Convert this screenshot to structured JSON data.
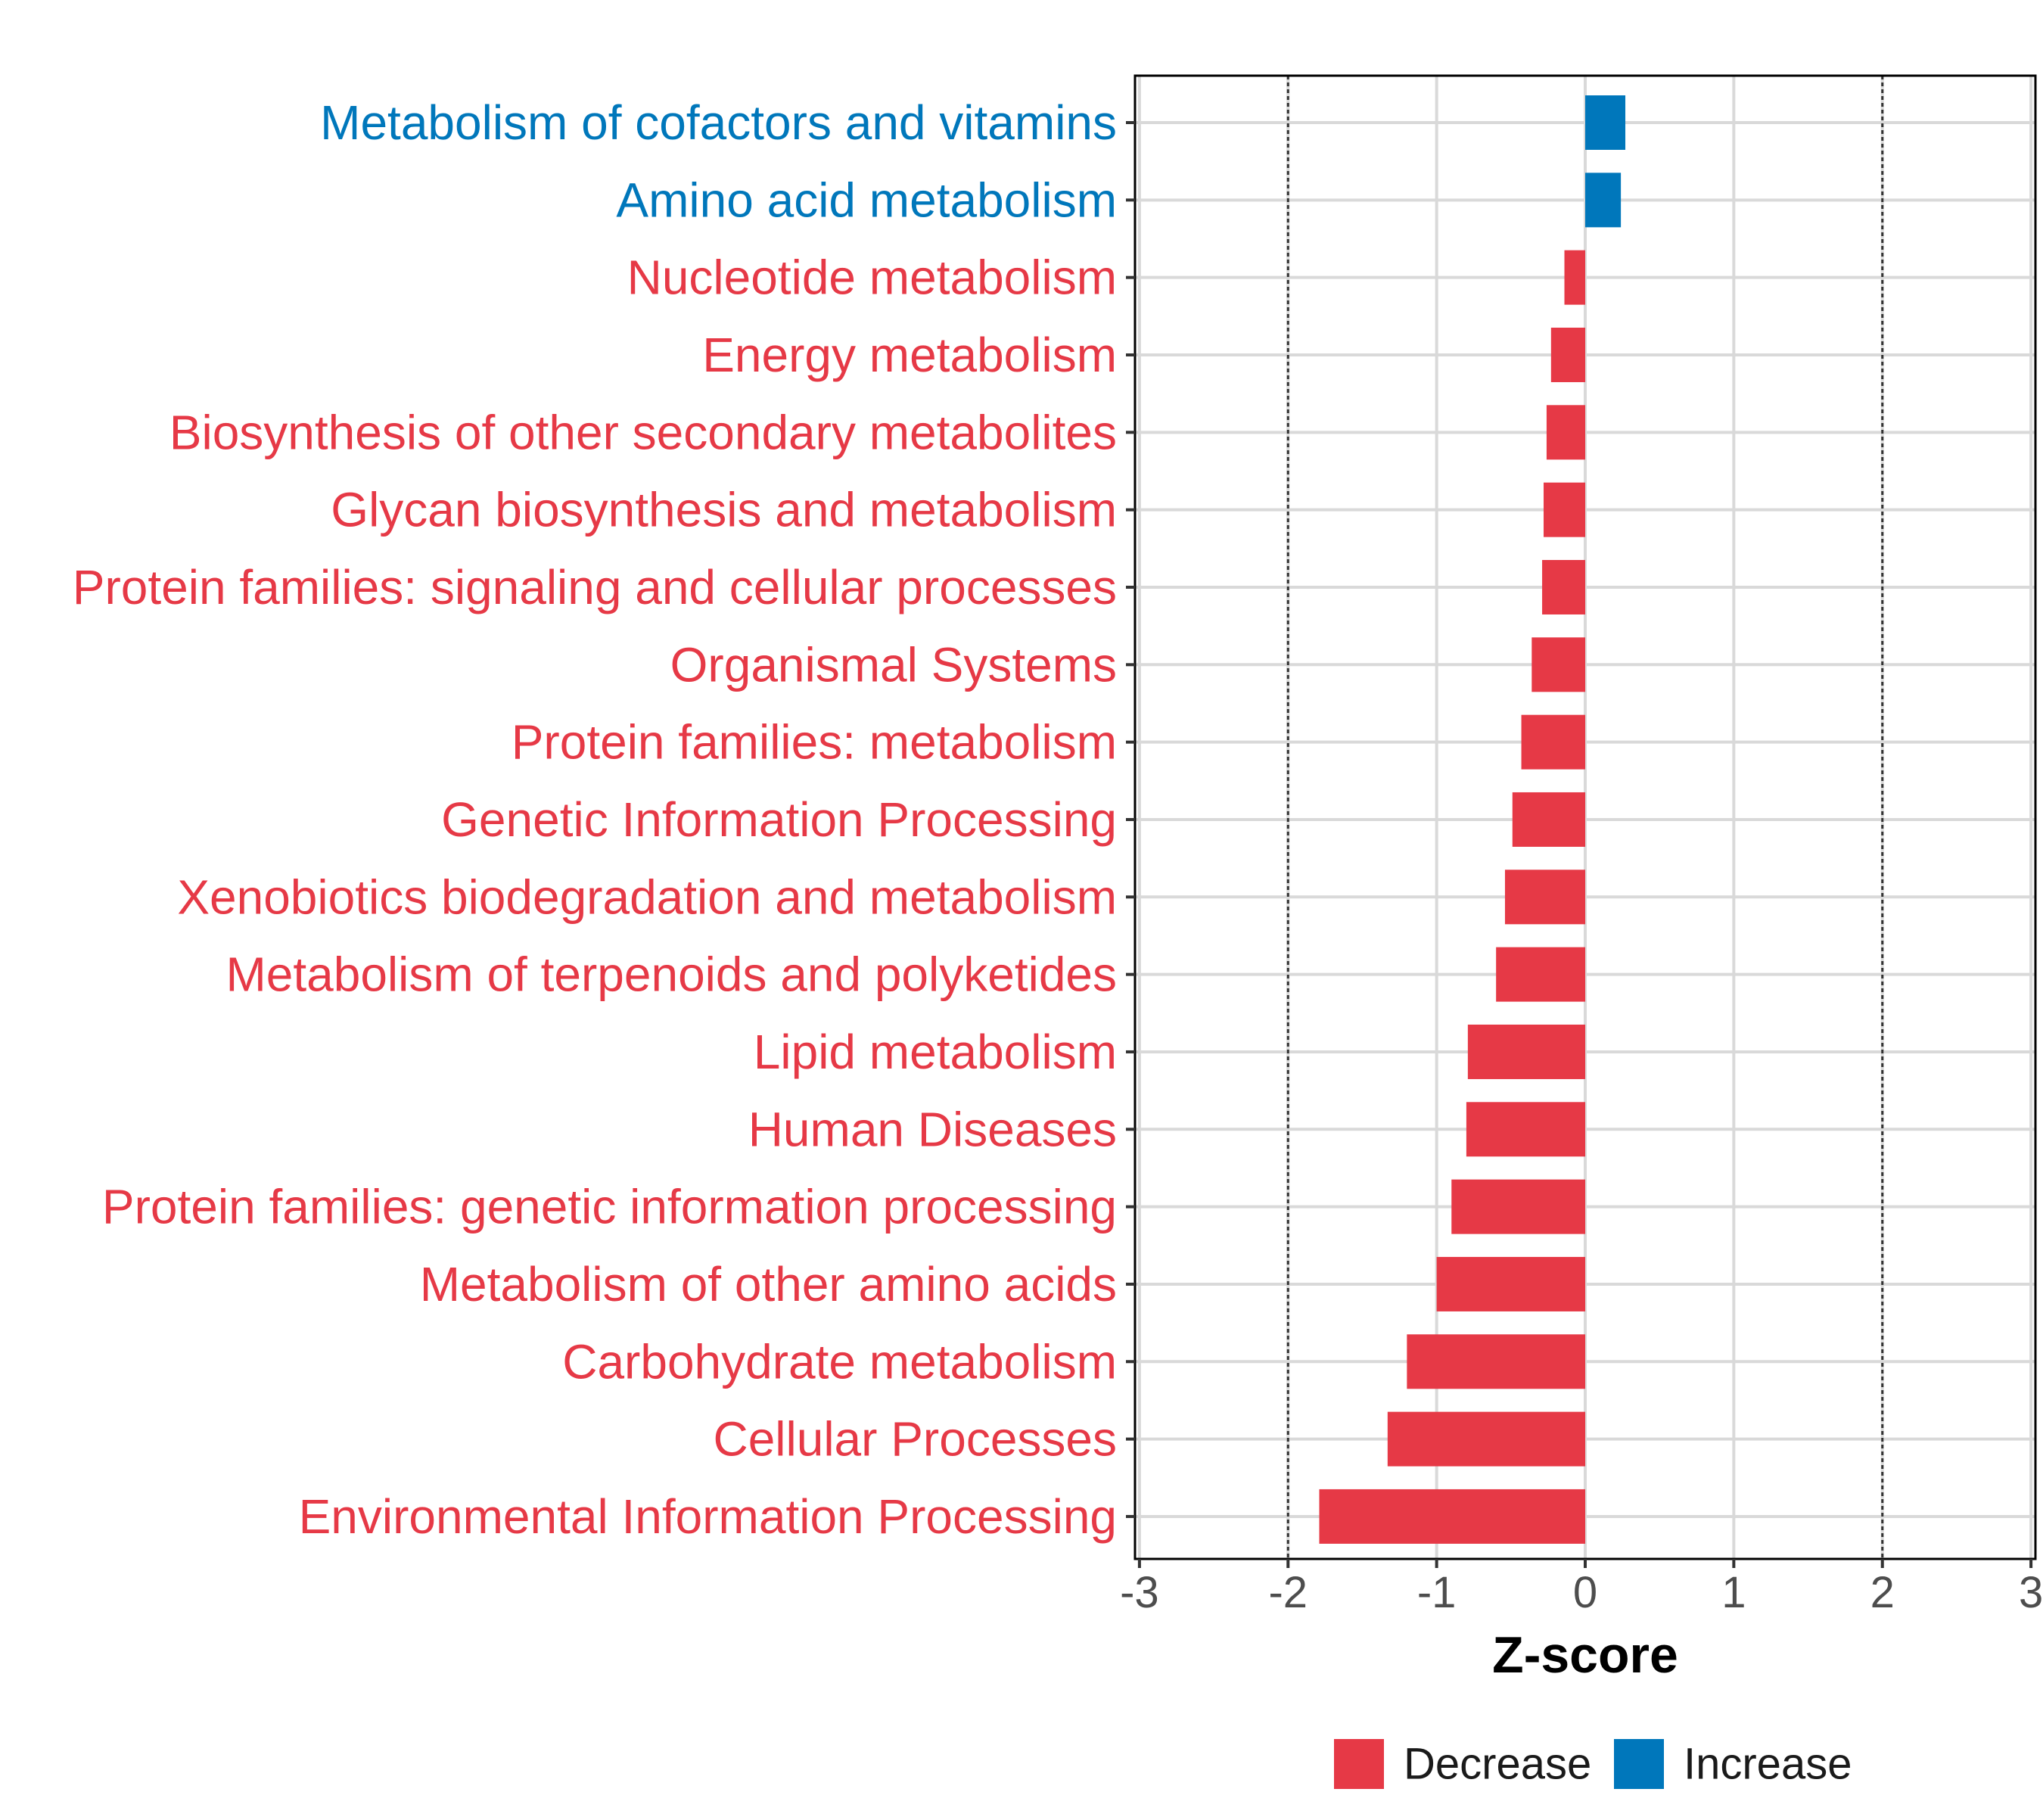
{
  "chart_data": {
    "type": "bar",
    "orientation": "horizontal",
    "categories": [
      "Metabolism of cofactors and vitamins",
      "Amino acid metabolism",
      "Nucleotide metabolism",
      "Energy metabolism",
      "Biosynthesis of other secondary metabolites",
      "Glycan biosynthesis and metabolism",
      "Protein families: signaling and cellular processes",
      "Organismal Systems",
      "Protein families: metabolism",
      "Genetic Information Processing",
      "Xenobiotics biodegradation and metabolism",
      "Metabolism of terpenoids and polyketides",
      "Lipid metabolism",
      "Human Diseases",
      "Protein families: genetic information processing",
      "Metabolism of other amino acids",
      "Carbohydrate metabolism",
      "Cellular Processes",
      "Environmental Information Processing"
    ],
    "values": [
      0.27,
      0.24,
      -0.14,
      -0.23,
      -0.26,
      -0.28,
      -0.29,
      -0.36,
      -0.43,
      -0.49,
      -0.54,
      -0.6,
      -0.79,
      -0.8,
      -0.9,
      -1.0,
      -1.2,
      -1.33,
      -1.79
    ],
    "groups": [
      "Increase",
      "Increase",
      "Decrease",
      "Decrease",
      "Decrease",
      "Decrease",
      "Decrease",
      "Decrease",
      "Decrease",
      "Decrease",
      "Decrease",
      "Decrease",
      "Decrease",
      "Decrease",
      "Decrease",
      "Decrease",
      "Decrease",
      "Decrease",
      "Decrease"
    ],
    "title": "",
    "xlabel": "Z-score",
    "ylabel": "",
    "xlim": [
      -3.03,
      3.03
    ],
    "xticks": [
      -3,
      -2,
      -1,
      0,
      1,
      2,
      3
    ],
    "xtick_labels": [
      "-3",
      "-2",
      "-1",
      "0",
      "1",
      "2",
      "3"
    ],
    "reference_lines": [
      -2,
      2
    ],
    "grid": true,
    "legend": {
      "position": "bottom",
      "entries": [
        {
          "name": "Decrease",
          "color": "#E63946"
        },
        {
          "name": "Increase",
          "color": "#0077BB"
        }
      ]
    },
    "colors": {
      "Decrease": "#E63946",
      "Increase": "#0077BB"
    }
  }
}
